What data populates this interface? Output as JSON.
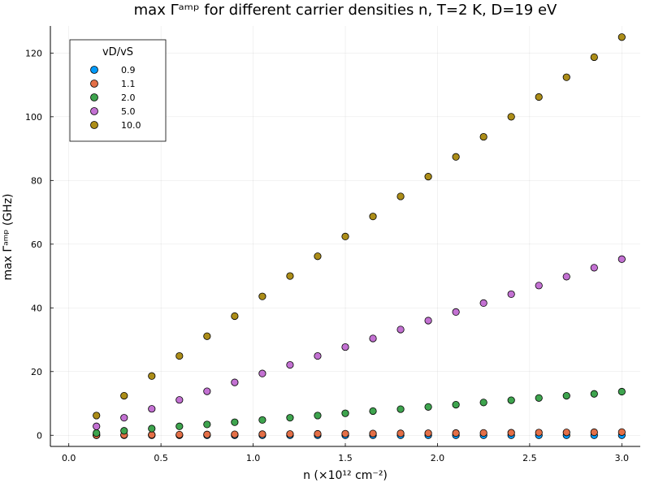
{
  "chart_data": {
    "type": "scatter",
    "title": "max Γᵃᵐᵖ for different carrier densities n, T=2 K, D=19 eV",
    "xlabel": "n (×10¹² cm⁻²)",
    "ylabel": "max Γᵃᵐᵖ (GHz)",
    "xlim": [
      -0.1,
      3.1
    ],
    "ylim": [
      -3.5,
      128.5
    ],
    "xticks": [
      0.0,
      0.5,
      1.0,
      1.5,
      2.0,
      2.5,
      3.0
    ],
    "xtick_labels": [
      "0.0",
      "0.5",
      "1.0",
      "1.5",
      "2.0",
      "2.5",
      "3.0"
    ],
    "yticks": [
      0,
      20,
      40,
      60,
      80,
      100,
      120
    ],
    "ytick_labels": [
      "0",
      "20",
      "40",
      "60",
      "80",
      "100",
      "120"
    ],
    "grid": true,
    "legend_title": "vD/vS",
    "legend_position": "top-left",
    "x": [
      0.15,
      0.3,
      0.45,
      0.6,
      0.75,
      0.9,
      1.05,
      1.2,
      1.35,
      1.5,
      1.65,
      1.8,
      1.95,
      2.1,
      2.25,
      2.4,
      2.55,
      2.7,
      2.85,
      3.0
    ],
    "series": [
      {
        "name": "0.9",
        "color": "#009AFA",
        "values": [
          0,
          0,
          0,
          0,
          0,
          0,
          0,
          0,
          0,
          0,
          0,
          0,
          0,
          0,
          0,
          0,
          0,
          0,
          0,
          0
        ]
      },
      {
        "name": "1.1",
        "color": "#E36F47",
        "values": [
          0.05,
          0.1,
          0.15,
          0.2,
          0.25,
          0.3,
          0.35,
          0.4,
          0.45,
          0.5,
          0.55,
          0.6,
          0.65,
          0.7,
          0.75,
          0.8,
          0.85,
          0.9,
          0.95,
          1.0
        ]
      },
      {
        "name": "2.0",
        "color": "#3EA44E",
        "values": [
          0.7,
          1.4,
          2.1,
          2.8,
          3.4,
          4.1,
          4.8,
          5.5,
          6.2,
          6.9,
          7.6,
          8.2,
          8.9,
          9.6,
          10.3,
          11.0,
          11.7,
          12.4,
          13.0,
          13.7
        ]
      },
      {
        "name": "5.0",
        "color": "#C371D2",
        "values": [
          2.8,
          5.5,
          8.3,
          11.1,
          13.8,
          16.6,
          19.4,
          22.1,
          24.9,
          27.7,
          30.4,
          33.2,
          36.0,
          38.7,
          41.5,
          44.3,
          47.0,
          49.8,
          52.6,
          55.3
        ]
      },
      {
        "name": "10.0",
        "color": "#AC8D18",
        "values": [
          6.2,
          12.4,
          18.6,
          24.9,
          31.1,
          37.4,
          43.6,
          50.0,
          56.2,
          62.4,
          68.7,
          75.0,
          81.2,
          87.4,
          93.7,
          100.0,
          106.2,
          112.4,
          118.7,
          125.0
        ]
      }
    ]
  }
}
